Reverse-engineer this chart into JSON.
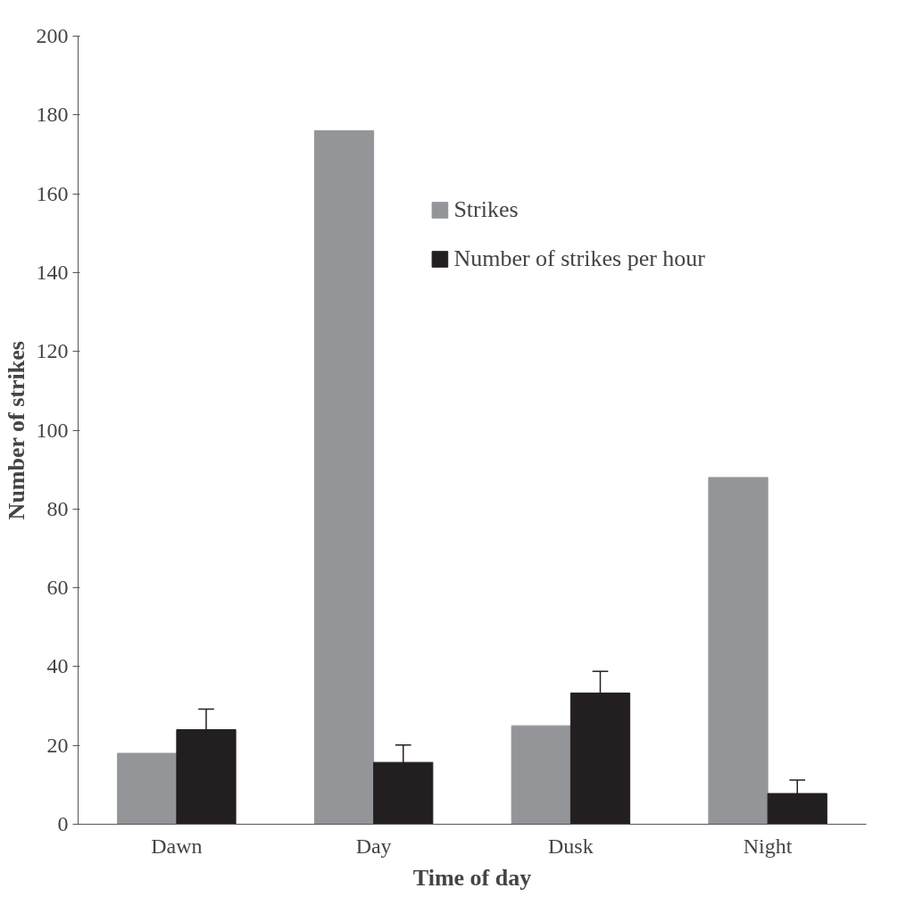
{
  "chart_data": {
    "type": "bar",
    "xlabel": "Time of day",
    "ylabel": "Number of strikes",
    "categories": [
      "Dawn",
      "Day",
      "Dusk",
      "Night"
    ],
    "series": [
      {
        "name": "Strikes",
        "color": "#939598",
        "values": [
          18,
          176,
          25,
          88
        ]
      },
      {
        "name": "Number of strikes per hour",
        "color": "#231f20",
        "values": [
          24,
          15.7,
          33.3,
          7.8
        ],
        "errors": [
          5.2,
          4.4,
          5.5,
          3.4
        ]
      }
    ],
    "ylim": [
      0,
      200
    ],
    "yticks": [
      0,
      20,
      40,
      60,
      80,
      100,
      120,
      140,
      160,
      180,
      200
    ],
    "grid": false,
    "legend": "top right"
  }
}
